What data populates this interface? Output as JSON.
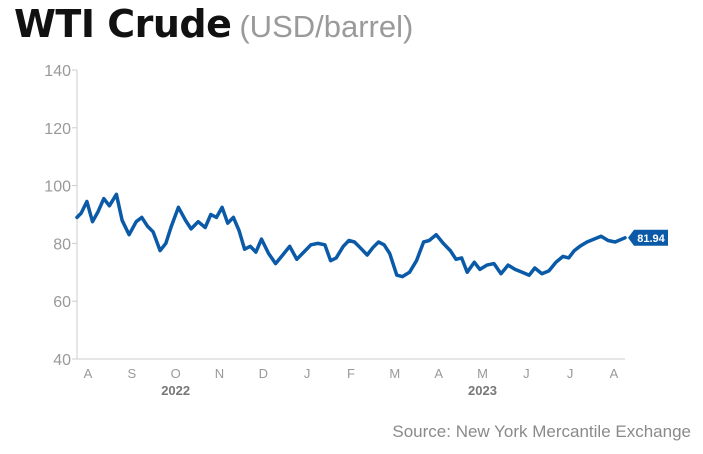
{
  "title": "WTI Crude",
  "unit": "(USD/barrel)",
  "source": "Source: New York Mercantile Exchange",
  "colors": {
    "line": "#0a5aa8",
    "axis": "#cccccc",
    "tick_text": "#999999",
    "year_text": "#777777"
  },
  "chart_data": {
    "type": "line",
    "title": "WTI Crude",
    "unit": "(USD/barrel)",
    "ylim": [
      40,
      140
    ],
    "yticks": [
      40,
      60,
      80,
      100,
      120,
      140
    ],
    "grid": false,
    "month_labels": [
      "A",
      "S",
      "O",
      "N",
      "D",
      "J",
      "F",
      "M",
      "A",
      "M",
      "J",
      "J",
      "A"
    ],
    "year_labels": [
      {
        "label": "2022",
        "month_index": 2
      },
      {
        "label": "2023",
        "month_index": 9
      }
    ],
    "x_start": "2022-08-01",
    "x_end": "2023-08-25",
    "last_value_label": "81.94",
    "series": [
      {
        "points": [
          [
            "2022-08-01",
            89.0
          ],
          [
            "2022-08-04",
            90.5
          ],
          [
            "2022-08-08",
            94.5
          ],
          [
            "2022-08-12",
            87.5
          ],
          [
            "2022-08-16",
            91.0
          ],
          [
            "2022-08-20",
            95.5
          ],
          [
            "2022-08-24",
            93.0
          ],
          [
            "2022-08-29",
            97.0
          ],
          [
            "2022-09-02",
            88.0
          ],
          [
            "2022-09-07",
            83.0
          ],
          [
            "2022-09-12",
            87.5
          ],
          [
            "2022-09-16",
            89.0
          ],
          [
            "2022-09-20",
            86.0
          ],
          [
            "2022-09-24",
            84.0
          ],
          [
            "2022-09-29",
            77.5
          ],
          [
            "2022-10-03",
            80.0
          ],
          [
            "2022-10-07",
            86.0
          ],
          [
            "2022-10-12",
            92.5
          ],
          [
            "2022-10-17",
            88.0
          ],
          [
            "2022-10-21",
            85.0
          ],
          [
            "2022-10-26",
            87.5
          ],
          [
            "2022-10-31",
            85.5
          ],
          [
            "2022-11-04",
            90.0
          ],
          [
            "2022-11-08",
            89.0
          ],
          [
            "2022-11-12",
            92.5
          ],
          [
            "2022-11-16",
            87.0
          ],
          [
            "2022-11-20",
            89.0
          ],
          [
            "2022-11-24",
            84.5
          ],
          [
            "2022-11-28",
            78.0
          ],
          [
            "2022-12-02",
            79.0
          ],
          [
            "2022-12-06",
            77.0
          ],
          [
            "2022-12-10",
            81.5
          ],
          [
            "2022-12-15",
            76.5
          ],
          [
            "2022-12-20",
            73.0
          ],
          [
            "2022-12-25",
            76.0
          ],
          [
            "2022-12-30",
            79.0
          ],
          [
            "2023-01-04",
            74.5
          ],
          [
            "2023-01-09",
            77.0
          ],
          [
            "2023-01-14",
            79.5
          ],
          [
            "2023-01-19",
            80.0
          ],
          [
            "2023-01-24",
            79.5
          ],
          [
            "2023-01-28",
            74.0
          ],
          [
            "2023-02-01",
            75.0
          ],
          [
            "2023-02-06",
            79.0
          ],
          [
            "2023-02-10",
            81.0
          ],
          [
            "2023-02-14",
            80.5
          ],
          [
            "2023-02-18",
            78.5
          ],
          [
            "2023-02-23",
            76.0
          ],
          [
            "2023-02-27",
            78.5
          ],
          [
            "2023-03-03",
            80.5
          ],
          [
            "2023-03-07",
            79.5
          ],
          [
            "2023-03-11",
            76.5
          ],
          [
            "2023-03-16",
            69.0
          ],
          [
            "2023-03-20",
            68.5
          ],
          [
            "2023-03-25",
            70.0
          ],
          [
            "2023-03-30",
            74.0
          ],
          [
            "2023-04-04",
            80.5
          ],
          [
            "2023-04-08",
            81.0
          ],
          [
            "2023-04-13",
            83.0
          ],
          [
            "2023-04-18",
            80.0
          ],
          [
            "2023-04-23",
            77.5
          ],
          [
            "2023-04-27",
            74.5
          ],
          [
            "2023-05-01",
            75.0
          ],
          [
            "2023-05-05",
            70.0
          ],
          [
            "2023-05-10",
            73.5
          ],
          [
            "2023-05-14",
            71.0
          ],
          [
            "2023-05-19",
            72.5
          ],
          [
            "2023-05-24",
            73.0
          ],
          [
            "2023-05-29",
            69.5
          ],
          [
            "2023-06-03",
            72.5
          ],
          [
            "2023-06-08",
            71.0
          ],
          [
            "2023-06-13",
            70.0
          ],
          [
            "2023-06-18",
            69.0
          ],
          [
            "2023-06-22",
            71.5
          ],
          [
            "2023-06-27",
            69.5
          ],
          [
            "2023-07-02",
            70.5
          ],
          [
            "2023-07-07",
            73.5
          ],
          [
            "2023-07-12",
            75.5
          ],
          [
            "2023-07-16",
            75.0
          ],
          [
            "2023-07-20",
            77.5
          ],
          [
            "2023-07-24",
            79.0
          ],
          [
            "2023-07-29",
            80.5
          ],
          [
            "2023-08-03",
            81.5
          ],
          [
            "2023-08-08",
            82.5
          ],
          [
            "2023-08-13",
            81.0
          ],
          [
            "2023-08-18",
            80.5
          ],
          [
            "2023-08-25",
            81.94
          ]
        ]
      }
    ]
  }
}
